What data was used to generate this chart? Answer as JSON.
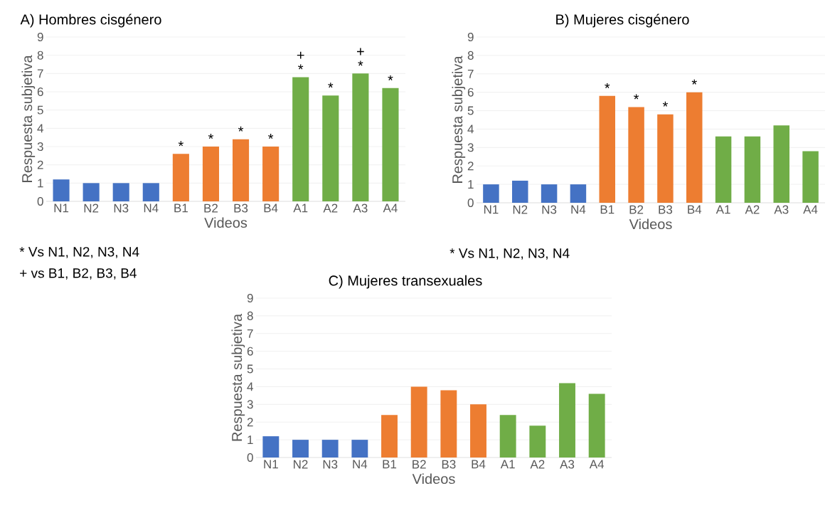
{
  "chart_data": [
    {
      "type": "bar",
      "title": "A) Hombres cisgénero",
      "xlabel": "Videos",
      "ylabel": "Respuesta subjetiva",
      "categories": [
        "N1",
        "N2",
        "N3",
        "N4",
        "B1",
        "B2",
        "B3",
        "B4",
        "A1",
        "A2",
        "A3",
        "A4"
      ],
      "values": [
        1.2,
        1,
        1,
        1,
        2.6,
        3,
        3.4,
        3,
        6.8,
        5.8,
        7,
        6.2
      ],
      "colors": [
        "#4472c4",
        "#4472c4",
        "#4472c4",
        "#4472c4",
        "#ed7d31",
        "#ed7d31",
        "#ed7d31",
        "#ed7d31",
        "#70ad47",
        "#70ad47",
        "#70ad47",
        "#70ad47"
      ],
      "ylim": [
        0,
        9
      ],
      "yticks": [
        0,
        1,
        2,
        3,
        4,
        5,
        6,
        7,
        8,
        9
      ],
      "grid": "y",
      "annotations": [
        {
          "text": "*",
          "x": "B1",
          "y": 2.6
        },
        {
          "text": "*",
          "x": "B2",
          "y": 3
        },
        {
          "text": "*",
          "x": "B3",
          "y": 3.4
        },
        {
          "text": "*",
          "x": "B4",
          "y": 3
        },
        {
          "text": "*",
          "x": "A1",
          "y": 6.8
        },
        {
          "text": "+",
          "x": "A1",
          "y": 6.8
        },
        {
          "text": "*",
          "x": "A2",
          "y": 5.8
        },
        {
          "text": "*",
          "x": "A3",
          "y": 7
        },
        {
          "text": "+",
          "x": "A3",
          "y": 7
        },
        {
          "text": "*",
          "x": "A4",
          "y": 6.2
        },
        "* Vs N1, N2, N3, N4",
        "+ vs B1, B2, B3, B4"
      ]
    },
    {
      "type": "bar",
      "title": "B) Mujeres cisgénero",
      "xlabel": "Videos",
      "ylabel": "Respuesta subjetiva",
      "categories": [
        "N1",
        "N2",
        "N3",
        "N4",
        "B1",
        "B2",
        "B3",
        "B4",
        "A1",
        "A2",
        "A3",
        "A4"
      ],
      "values": [
        1,
        1.2,
        1,
        1,
        5.8,
        5.2,
        4.8,
        6,
        3.6,
        3.6,
        4.2,
        2.8
      ],
      "colors": [
        "#4472c4",
        "#4472c4",
        "#4472c4",
        "#4472c4",
        "#ed7d31",
        "#ed7d31",
        "#ed7d31",
        "#ed7d31",
        "#70ad47",
        "#70ad47",
        "#70ad47",
        "#70ad47"
      ],
      "ylim": [
        0,
        9
      ],
      "yticks": [
        0,
        1,
        2,
        3,
        4,
        5,
        6,
        7,
        8,
        9
      ],
      "grid": "y",
      "annotations": [
        {
          "text": "*",
          "x": "B1",
          "y": 5.8
        },
        {
          "text": "*",
          "x": "B2",
          "y": 5.2
        },
        {
          "text": "*",
          "x": "B3",
          "y": 4.8
        },
        {
          "text": "*",
          "x": "B4",
          "y": 6
        },
        "* Vs N1, N2, N3, N4"
      ]
    },
    {
      "type": "bar",
      "title": "C) Mujeres transexuales",
      "xlabel": "Videos",
      "ylabel": "Respuesta subjetiva",
      "categories": [
        "N1",
        "N2",
        "N3",
        "N4",
        "B1",
        "B2",
        "B3",
        "B4",
        "A1",
        "A2",
        "A3",
        "A4"
      ],
      "values": [
        1.2,
        1,
        1,
        1,
        2.4,
        4,
        3.8,
        3,
        2.4,
        1.8,
        4.2,
        3.6
      ],
      "colors": [
        "#4472c4",
        "#4472c4",
        "#4472c4",
        "#4472c4",
        "#ed7d31",
        "#ed7d31",
        "#ed7d31",
        "#ed7d31",
        "#70ad47",
        "#70ad47",
        "#70ad47",
        "#70ad47"
      ],
      "ylim": [
        0,
        9
      ],
      "yticks": [
        0,
        1,
        2,
        3,
        4,
        5,
        6,
        7,
        8,
        9
      ],
      "grid": "y"
    }
  ]
}
